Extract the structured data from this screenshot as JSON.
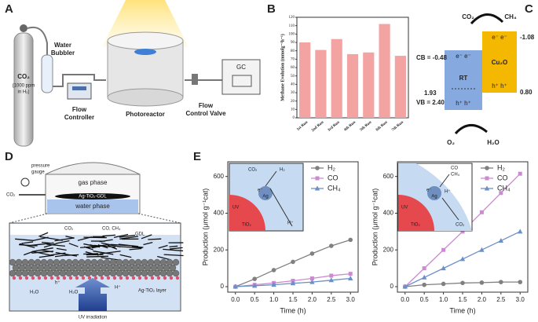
{
  "panels": {
    "A": {
      "label": "A",
      "texts": [
        "CO₂",
        "(1000 ppm",
        "in H₂)",
        "Water",
        "Bubbler",
        "Flow",
        "Controller",
        "Photoreactor",
        "Flow",
        "Control Valve",
        "GC"
      ]
    },
    "B": {
      "label": "B"
    },
    "C": {
      "label": "C",
      "texts": [
        "CO₂",
        "CH₄",
        "e⁻  e⁻",
        "e⁻  e⁻",
        "CB = -0.48",
        "-1.08",
        "RT",
        "Cu₂O",
        "1.93",
        "VB = 2.40",
        "h⁺  h⁺",
        "h⁺  h⁺",
        "0.80",
        "O₂",
        "H₂O"
      ]
    },
    "D": {
      "label": "D",
      "texts": [
        "pressure",
        "gauge",
        "CO₂",
        "gas phase",
        "Ag-TiO₂-GDL",
        "water phase",
        "CO₂",
        "CO, CH₄",
        "GDL",
        "h⁺",
        "H₂O",
        "H₂O",
        "H⁺",
        "Ag-TiO₂ layer",
        "UV irradiation"
      ]
    },
    "E": {
      "label": "E",
      "left_inset": [
        "CO₂",
        "H₂",
        "e⁻",
        "Ag",
        "UV",
        "TiO₂",
        "H⁺"
      ],
      "right_inset": [
        "CO",
        "CH₄",
        "e⁻",
        "Ag",
        "H⁺",
        "UV",
        "TiO₂",
        "CO₂"
      ]
    }
  },
  "chart_data": [
    {
      "type": "bar",
      "ylabel": "Methane Evolution (mmolg⁻¹h⁻¹)",
      "categories": [
        "1st Run",
        "2nd Run",
        "3rd Run",
        "4th Run",
        "5th Run",
        "6th Run",
        "7th Run"
      ],
      "values": [
        90,
        81,
        94,
        76,
        78,
        112,
        74
      ],
      "color": "#f4a3a3",
      "ylim": [
        0,
        120
      ],
      "yticks": [
        0,
        10,
        20,
        30,
        40,
        50,
        60,
        70,
        80,
        90,
        100,
        110,
        120
      ]
    },
    {
      "type": "line",
      "xlabel": "Time (h)",
      "ylabel": "Production (μmol g⁻¹cat)",
      "x": [
        0,
        0.5,
        1,
        1.5,
        2,
        2.5,
        3
      ],
      "xlim": [
        -0.2,
        3.2
      ],
      "xticks": [
        {
          "value": 0,
          "label": "0.0"
        },
        0.5,
        {
          "value": 1,
          "label": "1.0"
        },
        1.5,
        {
          "value": 2,
          "label": "2.0"
        },
        2.5,
        {
          "value": 3,
          "label": "3.0"
        }
      ],
      "ylim": [
        -30,
        680
      ],
      "yticks": [
        0,
        200,
        400,
        600
      ],
      "legend": "upper right",
      "series": [
        {
          "name": "H₂",
          "color": "#808080",
          "marker": "circle",
          "values": [
            0,
            42,
            90,
            135,
            180,
            222,
            255
          ]
        },
        {
          "name": "CO",
          "color": "#cc8ad0",
          "marker": "square",
          "values": [
            0,
            10,
            20,
            32,
            45,
            60,
            70
          ]
        },
        {
          "name": "CH₄",
          "color": "#6b8fc7",
          "marker": "triangle",
          "values": [
            0,
            5,
            10,
            18,
            25,
            35,
            45
          ]
        }
      ]
    },
    {
      "type": "line",
      "xlabel": "Time (h)",
      "ylabel": "Production (μmol g⁻¹cat)",
      "x": [
        0,
        0.5,
        1,
        1.5,
        2,
        2.5,
        3
      ],
      "xlim": [
        -0.2,
        3.2
      ],
      "xticks": [
        {
          "value": 0,
          "label": "0.0"
        },
        0.5,
        {
          "value": 1,
          "label": "1.0"
        },
        1.5,
        {
          "value": 2,
          "label": "2.0"
        },
        2.5,
        {
          "value": 3,
          "label": "3.0"
        }
      ],
      "ylim": [
        -30,
        680
      ],
      "yticks": [
        0,
        200,
        400,
        600
      ],
      "legend": "upper right",
      "series": [
        {
          "name": "H₂",
          "color": "#808080",
          "marker": "circle",
          "values": [
            0,
            10,
            15,
            20,
            22,
            25,
            25
          ]
        },
        {
          "name": "CO",
          "color": "#cc8ad0",
          "marker": "square",
          "values": [
            0,
            100,
            200,
            300,
            405,
            510,
            615
          ]
        },
        {
          "name": "CH₄",
          "color": "#6b8fc7",
          "marker": "triangle",
          "values": [
            0,
            50,
            100,
            150,
            200,
            250,
            300
          ]
        }
      ]
    }
  ]
}
